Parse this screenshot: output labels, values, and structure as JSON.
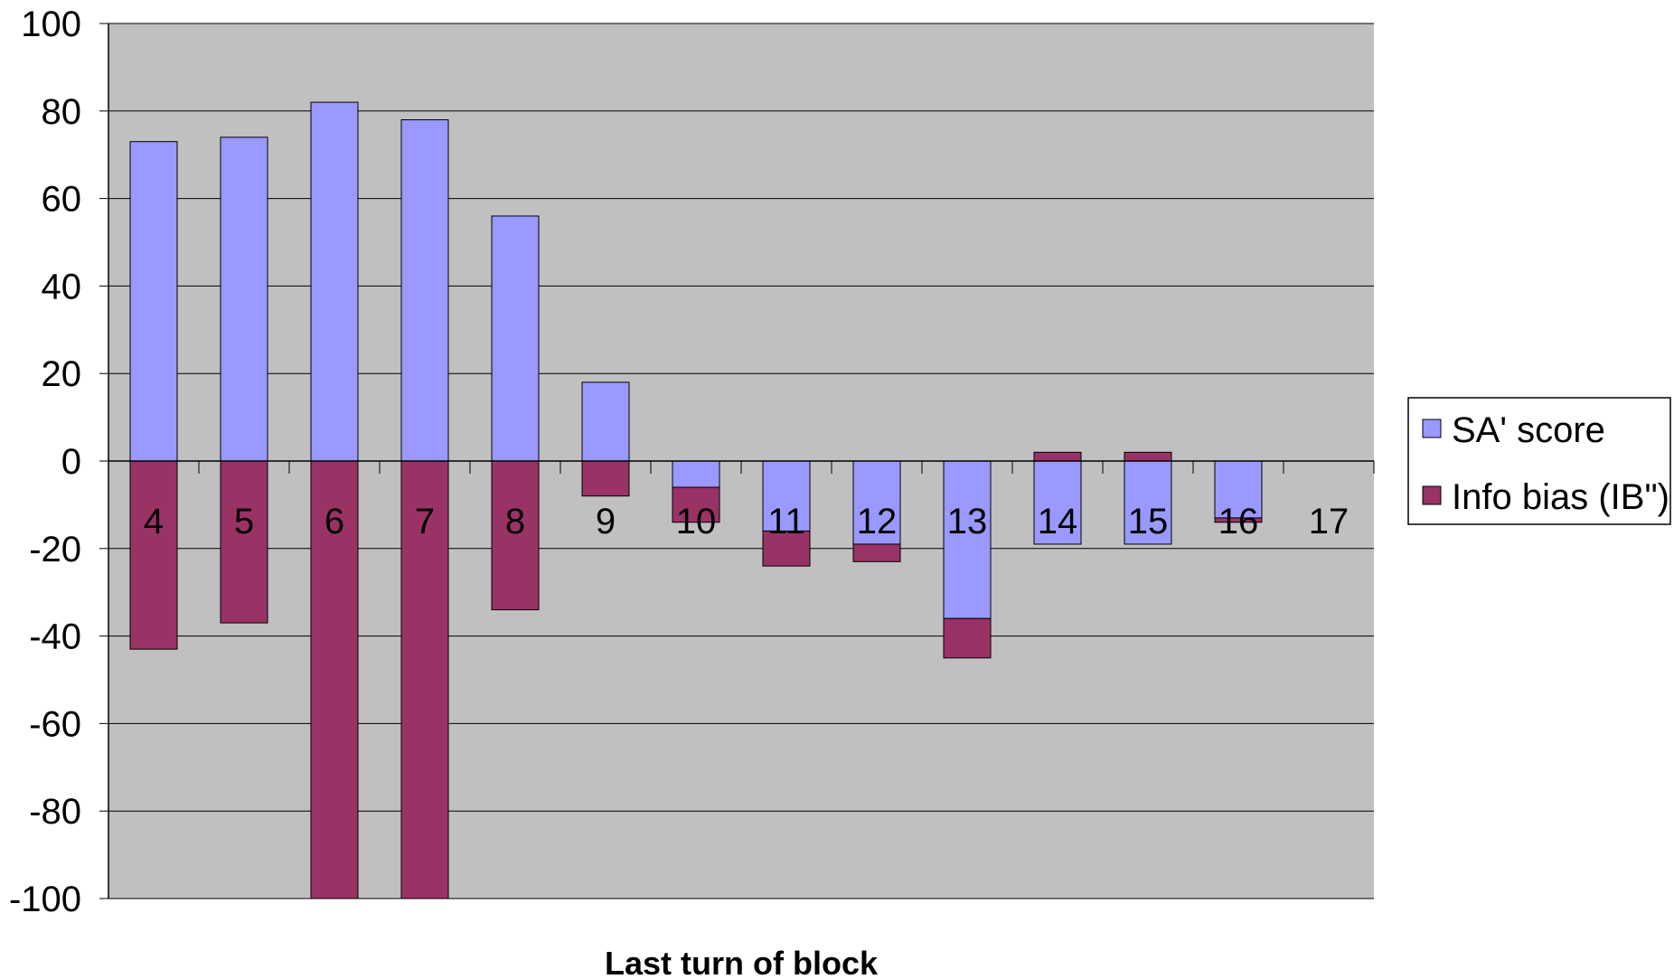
{
  "chart_data": {
    "type": "bar",
    "stacked": true,
    "title": "",
    "xlabel": "Last turn of block",
    "ylabel": "",
    "ylim": [
      -100,
      100
    ],
    "yticks": [
      100,
      80,
      60,
      40,
      20,
      0,
      -20,
      -40,
      -60,
      -80,
      -100
    ],
    "categories": [
      "4",
      "5",
      "6",
      "7",
      "8",
      "9",
      "10",
      "11",
      "12",
      "13",
      "14",
      "15",
      "16",
      "17"
    ],
    "series": [
      {
        "name": "SA' score",
        "color": "#9999ff",
        "values": [
          73,
          74,
          82,
          78,
          56,
          18,
          -6,
          -16,
          -19,
          -36,
          -19,
          -19,
          -13,
          0
        ]
      },
      {
        "name": "Info bias (IB\")",
        "color": "#993366",
        "values": [
          -43,
          -37,
          -100,
          -100,
          -34,
          -8,
          -8,
          -8,
          -4,
          -9,
          2,
          2,
          -1,
          0
        ]
      }
    ],
    "grid": true,
    "plot_background": "#c0c0c0",
    "legend_position": "right"
  }
}
